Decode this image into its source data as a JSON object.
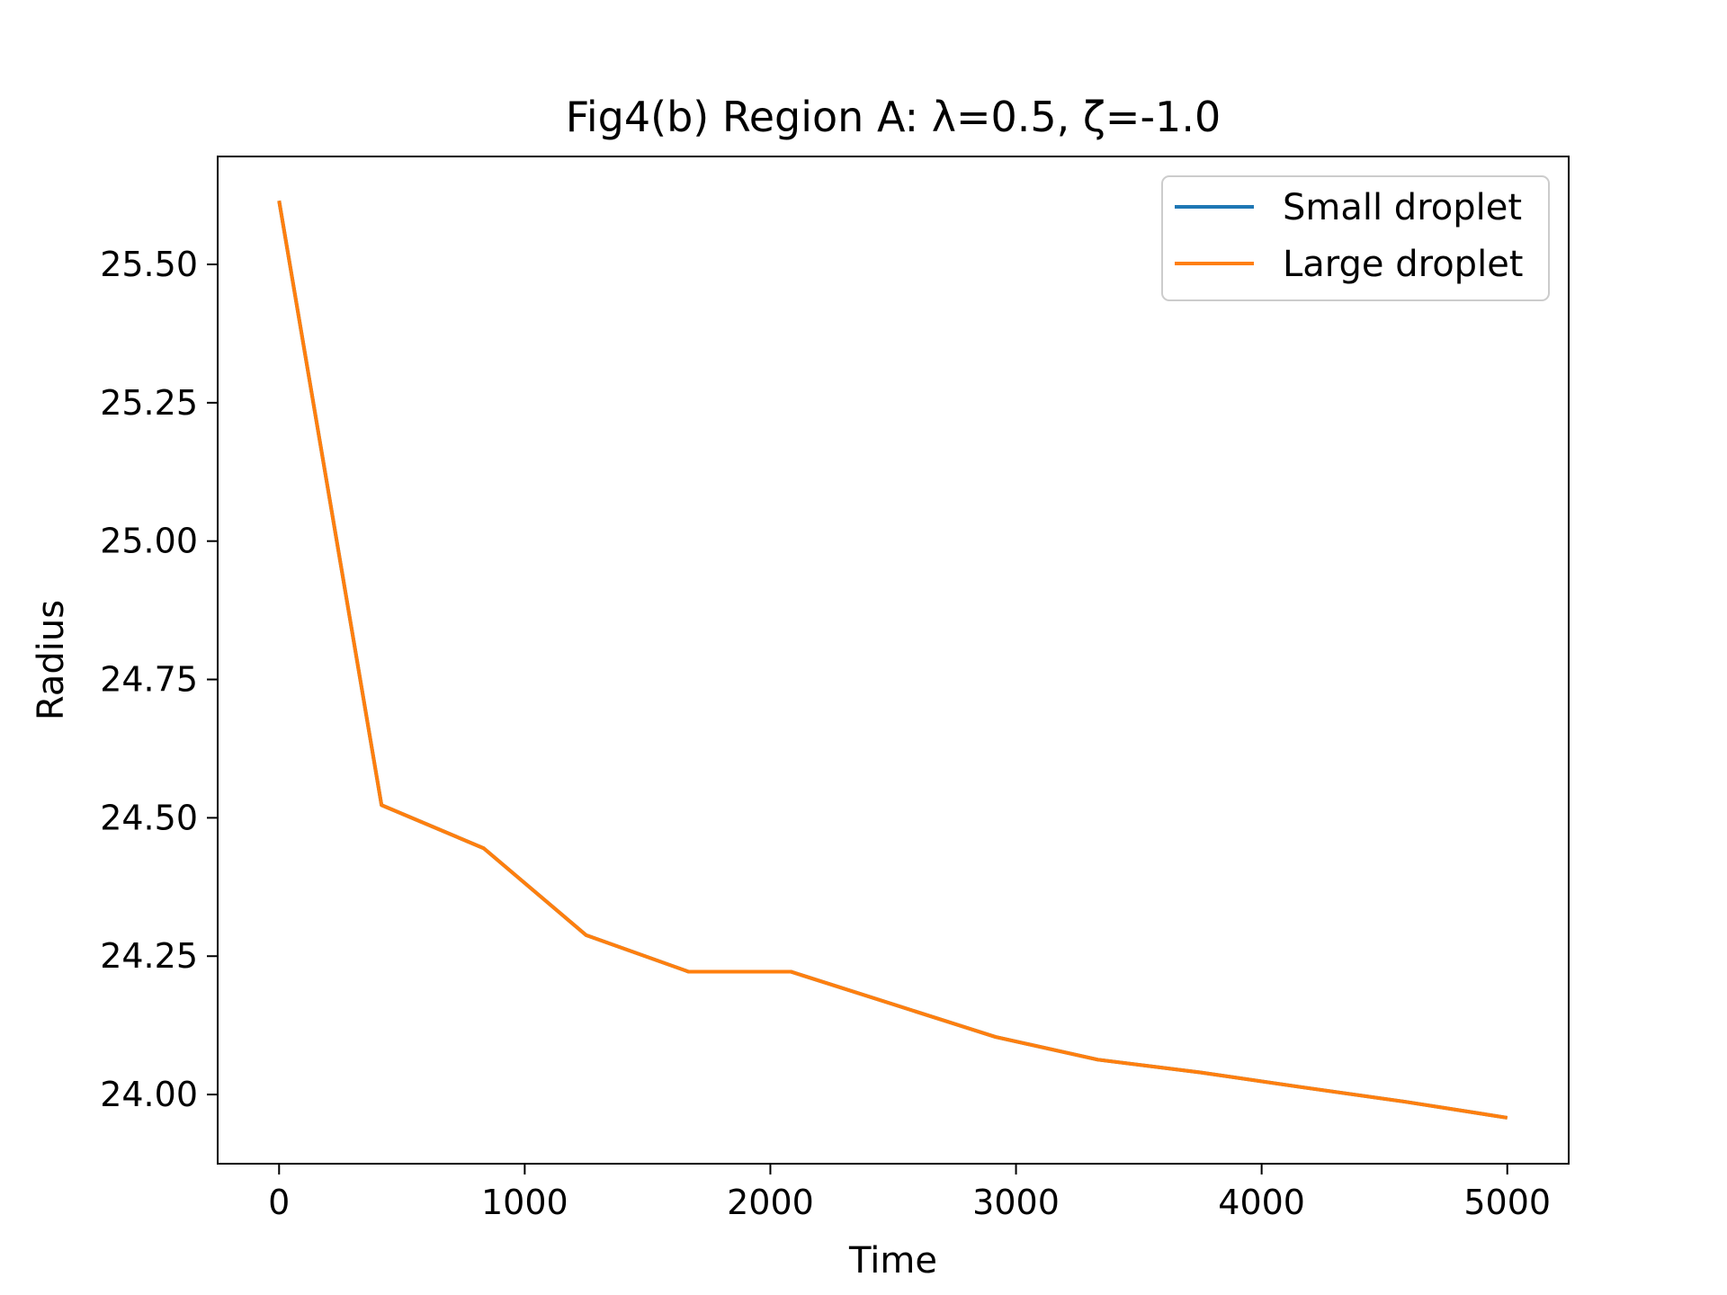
{
  "chart_data": {
    "type": "line",
    "title": "Fig4(b) Region A: λ=0.5, ζ=-1.0",
    "xlabel": "Time",
    "ylabel": "Radius",
    "xlim": [
      -250,
      5250
    ],
    "ylim": [
      23.875,
      25.695
    ],
    "xticks": [
      0,
      1000,
      2000,
      3000,
      4000,
      5000
    ],
    "xtick_labels": [
      "0",
      "1000",
      "2000",
      "3000",
      "4000",
      "5000"
    ],
    "yticks": [
      24.0,
      24.25,
      24.5,
      24.75,
      25.0,
      25.25,
      25.5
    ],
    "ytick_labels": [
      "24.00",
      "24.25",
      "24.50",
      "24.75",
      "25.00",
      "25.25",
      "25.50"
    ],
    "grid": false,
    "legend_position": "top-right",
    "series": [
      {
        "name": "Small droplet",
        "color": "#1f77b4",
        "x": [
          0,
          417,
          833,
          1250,
          1667,
          2083,
          2500,
          2917,
          3333,
          3750,
          4167,
          4583,
          5000
        ],
        "y": [
          25.615,
          24.523,
          24.445,
          24.288,
          24.222,
          24.222,
          24.163,
          24.104,
          24.063,
          24.04,
          24.013,
          23.987,
          23.958
        ]
      },
      {
        "name": "Large droplet",
        "color": "#ff7f0e",
        "x": [
          0,
          417,
          833,
          1250,
          1667,
          2083,
          2500,
          2917,
          3333,
          3750,
          4167,
          4583,
          5000
        ],
        "y": [
          25.615,
          24.523,
          24.445,
          24.288,
          24.222,
          24.222,
          24.163,
          24.104,
          24.063,
          24.04,
          24.013,
          23.987,
          23.958
        ]
      }
    ]
  }
}
